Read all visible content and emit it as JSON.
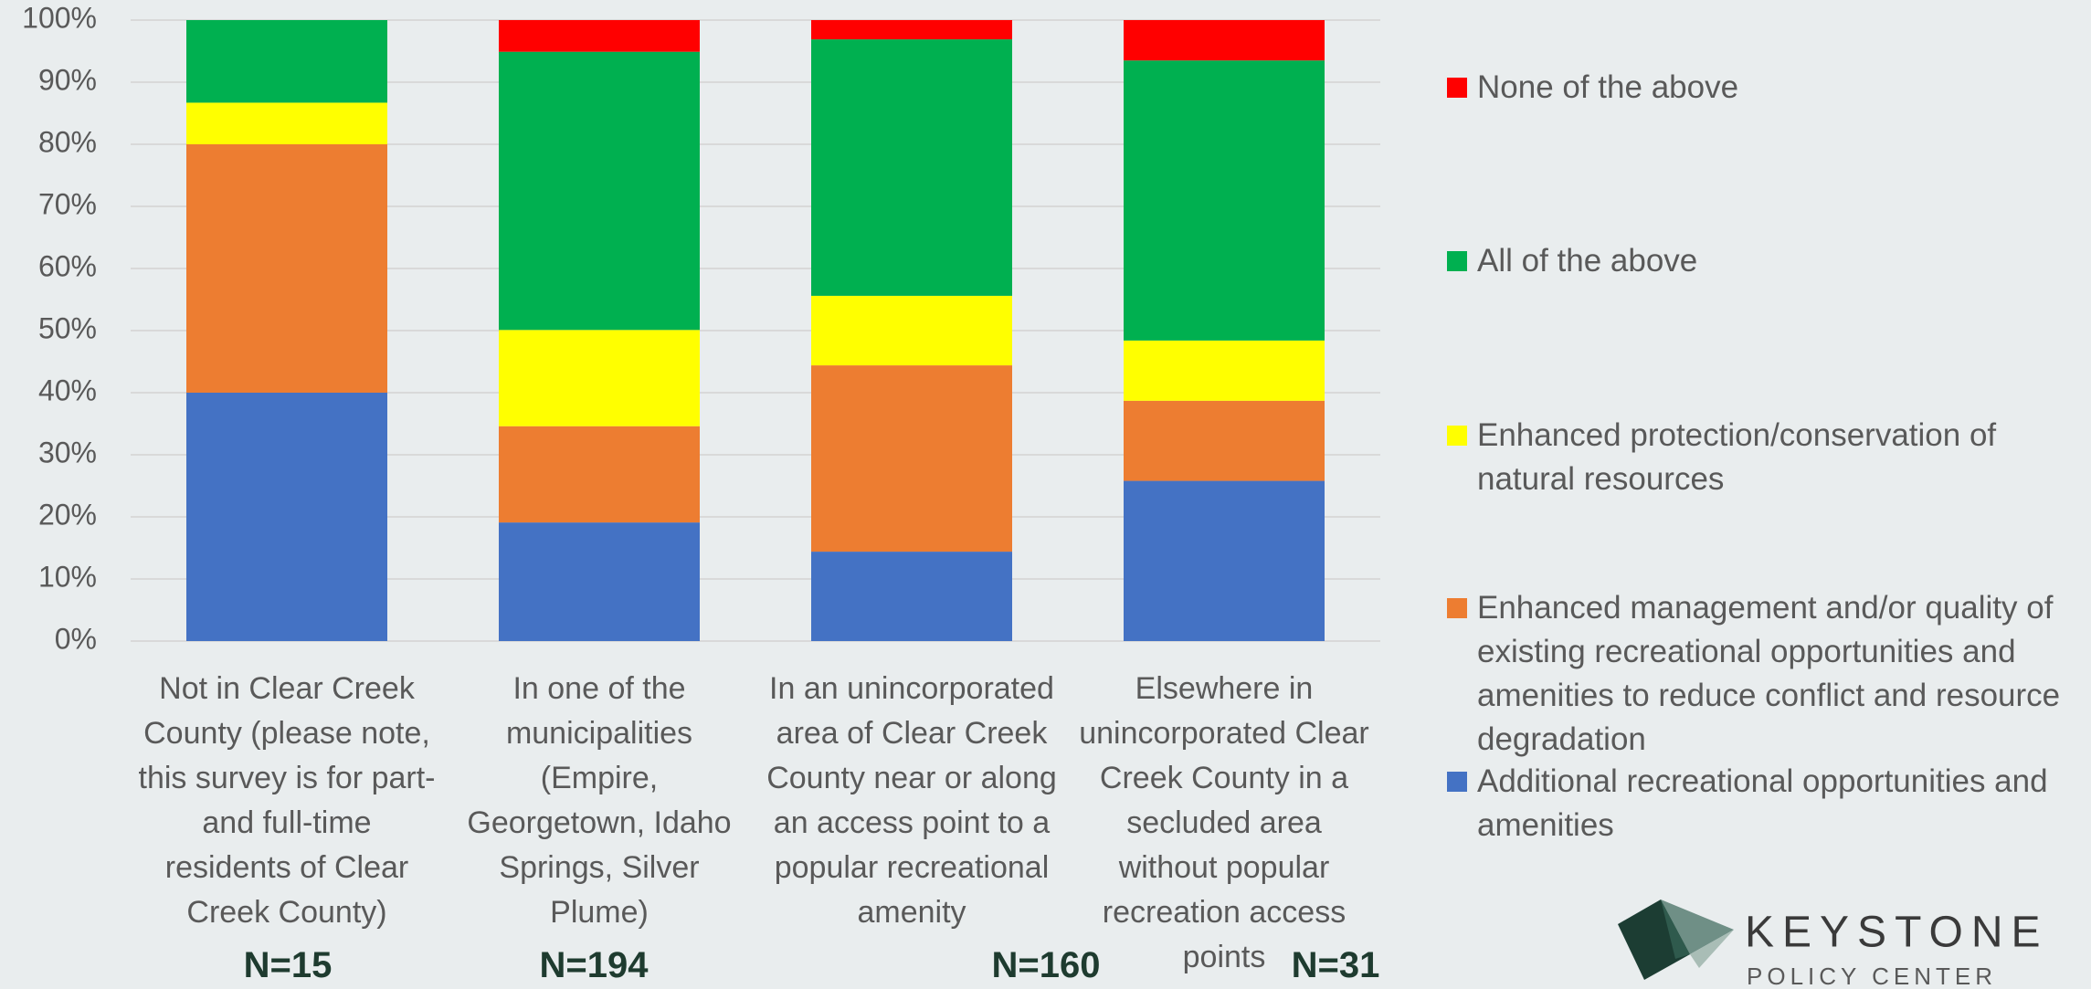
{
  "chart_data": {
    "type": "stacked_bar",
    "categories": [
      "Not in Clear Creek County (please note, this survey is for part- and full-time residents of Clear Creek County)",
      "In one of the municipalities (Empire, Georgetown, Idaho Springs, Silver Plume)",
      "In an unincorporated area of Clear Creek County near or along an access point to a popular recreational amenity",
      "Elsewhere in unincorporated Clear Creek County in a secluded area without popular recreation access points"
    ],
    "series": [
      {
        "name": "Additional recreational opportunities and amenities",
        "color": "#4472c4",
        "values": [
          40,
          19.1,
          14.4,
          25.8
        ]
      },
      {
        "name": "Enhanced management and/or quality of existing recreational opportunities and amenities to reduce conflict and resource degradation",
        "color": "#ed7d31",
        "values": [
          40,
          15.5,
          30,
          12.9
        ]
      },
      {
        "name": "Enhanced protection/conservation of natural resources",
        "color": "#ffff00",
        "values": [
          6.7,
          15.5,
          11.2,
          9.7
        ]
      },
      {
        "name": "All of the above",
        "color": "#00b050",
        "values": [
          13.3,
          44.8,
          41.3,
          45.1
        ]
      },
      {
        "name": "None of the above",
        "color": "#ff0000",
        "values": [
          0,
          5.1,
          3.1,
          6.5
        ]
      }
    ],
    "ylim": [
      0,
      100
    ],
    "yticks": [
      {
        "value": 0,
        "label": "0%"
      },
      {
        "value": 10,
        "label": "10%"
      },
      {
        "value": 20,
        "label": "20%"
      },
      {
        "value": 30,
        "label": "30%"
      },
      {
        "value": 40,
        "label": "40%"
      },
      {
        "value": 50,
        "label": "50%"
      },
      {
        "value": 60,
        "label": "60%"
      },
      {
        "value": 70,
        "label": "70%"
      },
      {
        "value": 80,
        "label": "80%"
      },
      {
        "value": 90,
        "label": "90%"
      },
      {
        "value": 100,
        "label": "100%"
      }
    ],
    "grid": true,
    "annotations": [
      "N=15",
      "N=194",
      "N=160",
      "N=31"
    ]
  },
  "logo": {
    "name": "KEYSTONE",
    "subtitle": "POLICY CENTER"
  }
}
